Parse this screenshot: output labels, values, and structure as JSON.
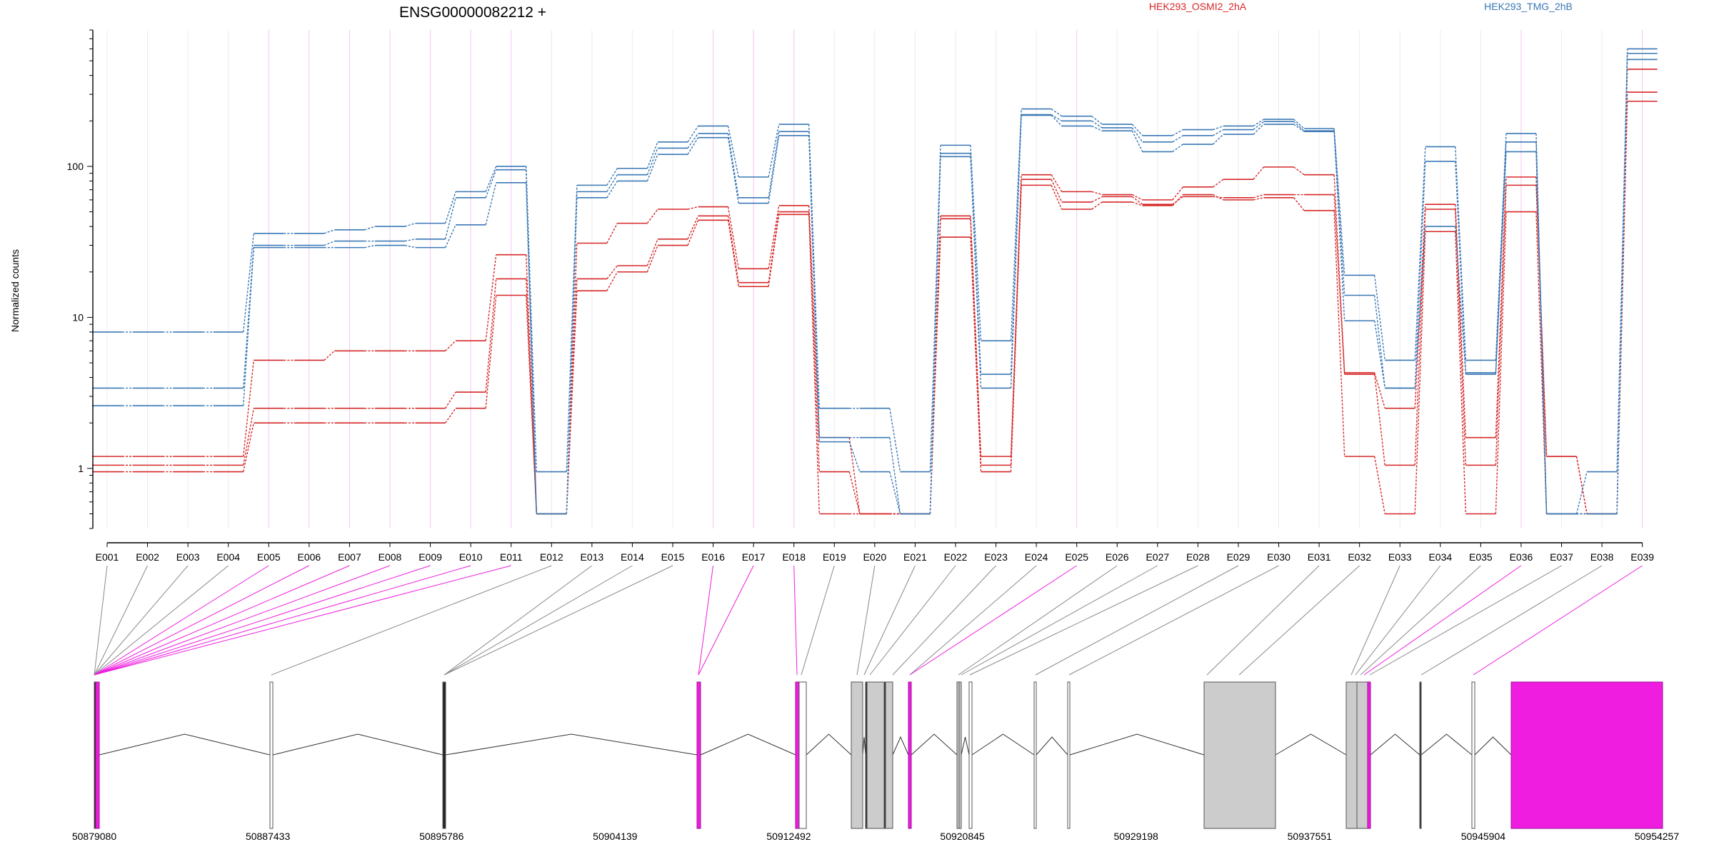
{
  "title": "ENSG00000082212 +",
  "ylabel": "Normalized counts",
  "legend": [
    {
      "name": "HEK293_OSMI2_2hA",
      "color": "#d62728"
    },
    {
      "name": "HEK293_TMG_2hB",
      "color": "#3a78b5"
    }
  ],
  "colors": {
    "highlight": "#ee1ddf",
    "exon_fill": "#cccccc",
    "connector": "#888888"
  },
  "chart_data": {
    "type": "line",
    "yscale": "log",
    "ylim": [
      0.4,
      800
    ],
    "yticks": [
      1,
      10,
      100
    ],
    "ytick_labels": [
      "1",
      "10",
      "100"
    ],
    "categories": [
      "E001",
      "E002",
      "E003",
      "E004",
      "E005",
      "E006",
      "E007",
      "E008",
      "E009",
      "E010",
      "E011",
      "E012",
      "E013",
      "E014",
      "E015",
      "E016",
      "E017",
      "E018",
      "E019",
      "E020",
      "E021",
      "E022",
      "E023",
      "E024",
      "E025",
      "E026",
      "E027",
      "E028",
      "E029",
      "E030",
      "E031",
      "E032",
      "E033",
      "E034",
      "E035",
      "E036",
      "E037",
      "E038",
      "E039"
    ],
    "highlighted_exons": [
      "E005",
      "E006",
      "E007",
      "E008",
      "E009",
      "E010",
      "E011",
      "E016",
      "E017",
      "E018",
      "E025",
      "E036",
      "E039"
    ],
    "series": [
      {
        "group": "HEK293_OSMI2_2hA",
        "values": [
          1.2,
          1.2,
          1.2,
          1.2,
          5.2,
          5.2,
          6.0,
          6.0,
          6.0,
          7.0,
          26,
          0.5,
          31,
          42,
          52,
          54,
          21,
          55,
          1.6,
          0.5,
          0.5,
          47,
          1.2,
          88,
          68,
          65,
          60,
          73,
          82,
          99,
          88,
          4.3,
          2.5,
          56,
          1.6,
          85,
          1.2,
          0.5,
          270
        ]
      },
      {
        "group": "HEK293_OSMI2_2hA",
        "values": [
          1.05,
          1.05,
          1.05,
          1.05,
          2.5,
          2.5,
          2.5,
          2.5,
          2.5,
          3.2,
          18,
          0.5,
          18,
          22,
          33,
          47,
          17,
          50,
          0.95,
          0.5,
          0.5,
          45,
          1.05,
          82,
          58,
          63,
          56,
          63,
          62,
          65,
          65,
          4.2,
          1.05,
          52,
          1.05,
          75,
          1.2,
          0.5,
          310
        ]
      },
      {
        "group": "HEK293_OSMI2_2hA",
        "values": [
          0.95,
          0.95,
          0.95,
          0.95,
          2.0,
          2.0,
          2.0,
          2.0,
          2.0,
          2.5,
          14,
          0.5,
          15,
          20,
          30,
          44,
          16,
          48,
          0.5,
          0.5,
          0.5,
          34,
          0.95,
          75,
          52,
          58,
          55,
          65,
          60,
          62,
          51,
          1.2,
          0.5,
          37,
          0.5,
          50,
          0.5,
          0.5,
          440
        ]
      },
      {
        "group": "HEK293_TMG_2hB",
        "values": [
          8.0,
          8.0,
          8.0,
          8.0,
          36,
          36,
          38,
          40,
          42,
          68,
          100,
          0.95,
          75,
          97,
          145,
          185,
          85,
          190,
          2.5,
          2.5,
          0.95,
          138,
          7.0,
          240,
          215,
          190,
          160,
          175,
          185,
          205,
          178,
          19,
          5.2,
          135,
          5.2,
          165,
          0.5,
          0.95,
          600
        ]
      },
      {
        "group": "HEK293_TMG_2hB",
        "values": [
          3.4,
          3.4,
          3.4,
          3.4,
          30,
          30,
          32,
          32,
          33,
          62,
          95,
          0.5,
          68,
          88,
          132,
          165,
          62,
          170,
          1.6,
          1.6,
          0.5,
          122,
          4.2,
          220,
          200,
          180,
          145,
          160,
          175,
          198,
          172,
          14,
          3.4,
          108,
          4.3,
          145,
          0.5,
          0.5,
          560
        ]
      },
      {
        "group": "HEK293_TMG_2hB",
        "values": [
          2.6,
          2.6,
          2.6,
          2.6,
          29,
          29,
          29,
          30,
          29,
          41,
          78,
          0.5,
          62,
          80,
          120,
          155,
          57,
          160,
          1.5,
          0.95,
          0.5,
          116,
          3.4,
          218,
          185,
          172,
          125,
          140,
          163,
          190,
          170,
          9.5,
          3.4,
          40,
          4.2,
          125,
          0.5,
          0.5,
          510
        ]
      }
    ],
    "gene_track": {
      "xlim": [
        50879080,
        50954257
      ],
      "tick_values": [
        50879080,
        50887433,
        50895786,
        50904139,
        50912492,
        50920845,
        50929198,
        50937551,
        50945904,
        50954257
      ],
      "tick_labels": [
        "50879080",
        "50887433",
        "50895786",
        "50904139",
        "50912492",
        "50920845",
        "50929198",
        "50937551",
        "50945904",
        "50954257"
      ]
    }
  }
}
